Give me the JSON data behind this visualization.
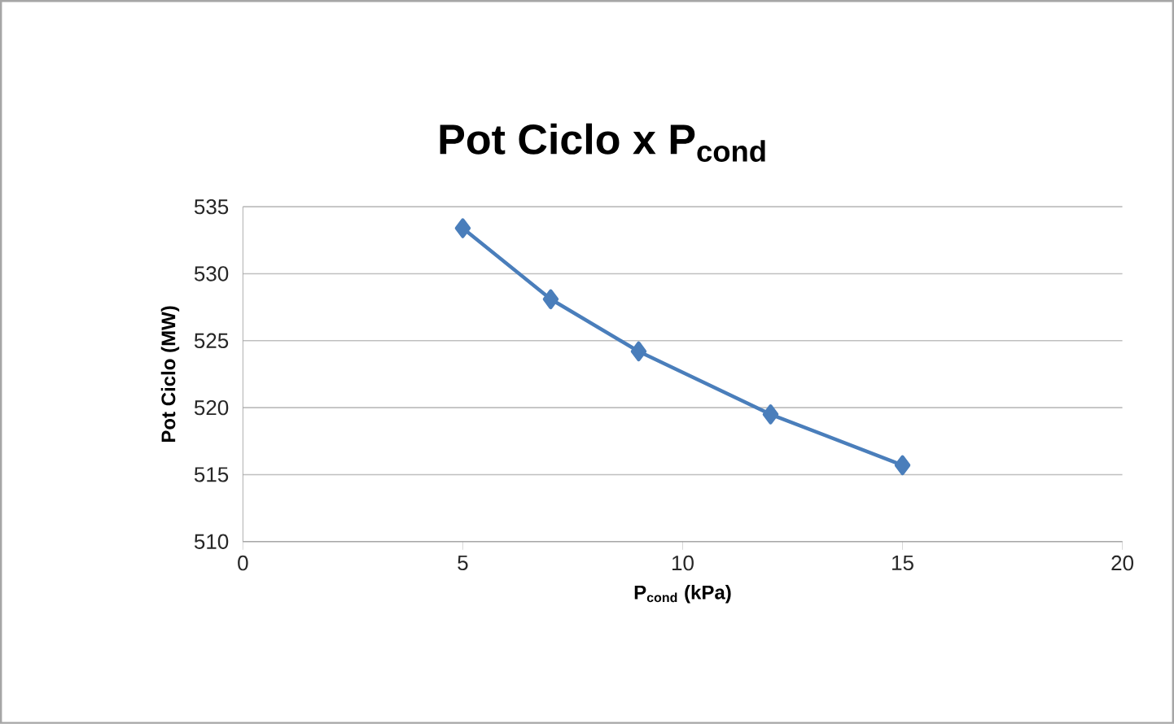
{
  "chart_data": {
    "type": "line",
    "title": "Pot Ciclo x P$_{cond}$",
    "xlabel": "P$_{cond}$ (kPa)",
    "ylabel": "Pot Ciclo (MW)",
    "x": [
      5,
      7,
      9,
      12,
      15
    ],
    "series": [
      {
        "color": "#4a7ebb",
        "values": [
          533.4,
          528.1,
          524.2,
          519.5,
          515.7
        ]
      }
    ],
    "xlim": [
      0,
      20
    ],
    "xticks": [
      0,
      5,
      10,
      15,
      20
    ],
    "ylim": [
      510,
      535
    ],
    "yticks": [
      510,
      515,
      520,
      525,
      530,
      535
    ],
    "grid": "y",
    "marker": "diamond",
    "line_style": "solid"
  }
}
